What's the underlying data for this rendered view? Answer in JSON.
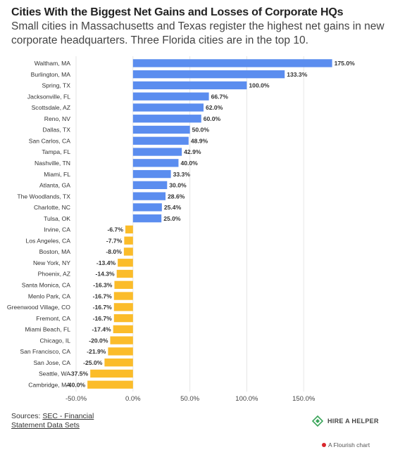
{
  "header": {
    "title": "Cities With the Biggest Net Gains and Losses of Corporate HQs",
    "subtitle": "Small cities in Massachusetts and Texas register the highest net gains in new corporate headquarters. Three Florida cities are in the top 10."
  },
  "colors": {
    "positive": "#5b8def",
    "negative": "#fbbc2a",
    "grid": "#e6e6e6",
    "text": "#333333"
  },
  "chart_data": {
    "type": "bar",
    "orientation": "horizontal",
    "categories": [
      "Waltham, MA",
      "Burlington, MA",
      "Spring, TX",
      "Jacksonville, FL",
      "Scottsdale, AZ",
      "Reno, NV",
      "Dallas, TX",
      "San Carlos, CA",
      "Tampa, FL",
      "Nashville, TN",
      "Miami, FL",
      "Atlanta, GA",
      "The Woodlands, TX",
      "Charlotte, NC",
      "Tulsa, OK",
      "Irvine, CA",
      "Los Angeles, CA",
      "Boston, MA",
      "New York, NY",
      "Phoenix, AZ",
      "Santa Monica, CA",
      "Menlo Park, CA",
      "Greenwood Village, CO",
      "Fremont, CA",
      "Miami Beach, FL",
      "Chicago, IL",
      "San Francisco, CA",
      "San Jose, CA",
      "Seattle, WA",
      "Cambridge, MA"
    ],
    "values": [
      175.0,
      133.3,
      100.0,
      66.7,
      62.0,
      60.0,
      50.0,
      48.9,
      42.9,
      40.0,
      33.3,
      30.0,
      28.6,
      25.4,
      25.0,
      -6.7,
      -7.7,
      -8.0,
      -13.4,
      -14.3,
      -16.3,
      -16.7,
      -16.7,
      -16.7,
      -17.4,
      -20.0,
      -21.9,
      -25.0,
      -37.5,
      -40.0
    ],
    "value_labels": [
      "175.0%",
      "133.3%",
      "100.0%",
      "66.7%",
      "62.0%",
      "60.0%",
      "50.0%",
      "48.9%",
      "42.9%",
      "40.0%",
      "33.3%",
      "30.0%",
      "28.6%",
      "25.4%",
      "25.0%",
      "-6.7%",
      "-7.7%",
      "-8.0%",
      "-13.4%",
      "-14.3%",
      "-16.3%",
      "-16.7%",
      "-16.7%",
      "-16.7%",
      "-17.4%",
      "-20.0%",
      "-21.9%",
      "-25.0%",
      "-37.5%",
      "-40.0%"
    ],
    "xlim": [
      -50,
      200
    ],
    "xticks": [
      -50,
      0,
      50,
      100,
      150
    ],
    "xtick_labels": [
      "-50.0%",
      "0.0%",
      "50.0%",
      "100.0%",
      "150.0%"
    ],
    "grid": true
  },
  "footer": {
    "sources_prefix": "Sources: ",
    "sources_link": "SEC - Financial Statement Data Sets",
    "brand": "HIRE A HELPER",
    "brand_icon": "diamond-logo-icon",
    "flourish": "A Flourish chart"
  }
}
